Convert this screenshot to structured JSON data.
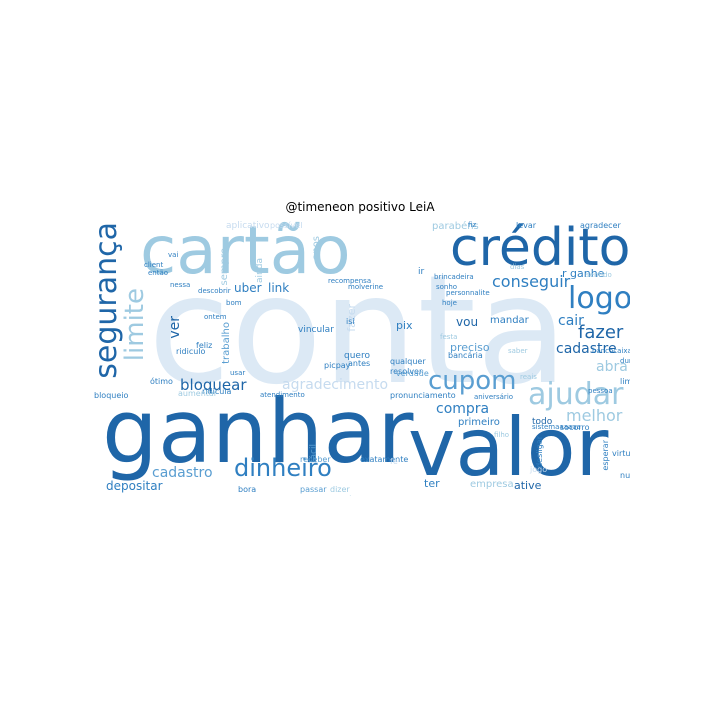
{
  "title": "@timeneon positivo LeiA",
  "colors": {
    "darkest": "#08306b",
    "dark": "#1f66a8",
    "mid": "#2f7fc1",
    "light": "#9ecae1",
    "lighter": "#c6dbef",
    "faint": "#deebf7"
  },
  "words": [
    {
      "text": "conta",
      "color": "#dce9f5"
    },
    {
      "text": "ganhar",
      "color": "#1f66a8"
    },
    {
      "text": "valor",
      "color": "#1f66a8"
    },
    {
      "text": "cartão",
      "color": "#9ecae1"
    },
    {
      "text": "crédito",
      "color": "#1f66a8"
    },
    {
      "text": "segurança",
      "color": "#1f66a8"
    },
    {
      "text": "logo",
      "color": "#2f7fc1"
    },
    {
      "text": "ajudar",
      "color": "#9ecae1"
    },
    {
      "text": "cupom",
      "color": "#5a9ed1"
    },
    {
      "text": "dinheiro",
      "color": "#2f7fc1"
    },
    {
      "text": "limite",
      "color": "#9ecae1"
    },
    {
      "text": "conseguir",
      "color": "#2f7fc1"
    },
    {
      "text": "fazer",
      "color": "#1f66a8"
    },
    {
      "text": "cadastre",
      "color": "#1f66a8"
    },
    {
      "text": "cair",
      "color": "#2f7fc1"
    },
    {
      "text": "abra",
      "color": "#9ecae1"
    },
    {
      "text": "melhor",
      "color": "#9ecae1"
    },
    {
      "text": "compra",
      "color": "#2f7fc1"
    },
    {
      "text": "bloquear",
      "color": "#1f66a8"
    },
    {
      "text": "agradecimento",
      "color": "#c6dbef"
    },
    {
      "text": "cadastro",
      "color": "#5a9ed1"
    },
    {
      "text": "depositar",
      "color": "#2f7fc1"
    },
    {
      "text": "ative",
      "color": "#1f66a8"
    },
    {
      "text": "uber",
      "color": "#2f7fc1"
    },
    {
      "text": "link",
      "color": "#2f7fc1"
    },
    {
      "text": "vou",
      "color": "#1f66a8"
    },
    {
      "text": "mandar",
      "color": "#2f7fc1"
    },
    {
      "text": "ver",
      "color": "#1f66a8"
    },
    {
      "text": "r ganhe",
      "color": "#2f7fc1"
    },
    {
      "text": "preciso",
      "color": "#5a9ed1"
    },
    {
      "text": "primeiro",
      "color": "#2f7fc1"
    },
    {
      "text": "todo",
      "color": "#1f66a8"
    },
    {
      "text": "ter",
      "color": "#2f7fc1"
    },
    {
      "text": "empresa",
      "color": "#9ecae1"
    },
    {
      "text": "pix",
      "color": "#2f7fc1"
    },
    {
      "text": "fazer",
      "color": "#c6dbef"
    },
    {
      "text": "parabéns",
      "color": "#9ecae1"
    },
    {
      "text": "trabalho",
      "color": "#5a9ed1"
    },
    {
      "text": "sempre",
      "color": "#9ecae1"
    },
    {
      "text": "ainda",
      "color": "#9ecae1"
    },
    {
      "text": "vincular",
      "color": "#2f7fc1"
    },
    {
      "text": "qualquer",
      "color": "#2f7fc1"
    },
    {
      "text": "resolver",
      "color": "#2f7fc1"
    },
    {
      "text": "quero",
      "color": "#2f7fc1"
    },
    {
      "text": "verdade",
      "color": "#5a9ed1"
    },
    {
      "text": "feliz",
      "color": "#2f7fc1"
    },
    {
      "text": "ridiculo",
      "color": "#2f7fc1"
    },
    {
      "text": "ótimo",
      "color": "#2f7fc1"
    },
    {
      "text": "bloqueio",
      "color": "#2f7fc1"
    },
    {
      "text": "ridicula",
      "color": "#2f7fc1"
    },
    {
      "text": "pronunciamento",
      "color": "#2f7fc1"
    },
    {
      "text": "aniversário",
      "color": "#2f7fc1"
    },
    {
      "text": "fácil",
      "color": "#5a9ed1"
    },
    {
      "text": "receber",
      "color": "#5a9ed1"
    },
    {
      "text": "exatamente",
      "color": "#2f7fc1"
    },
    {
      "text": "picpay",
      "color": "#2f7fc1"
    },
    {
      "text": "antes",
      "color": "#2f7fc1"
    },
    {
      "text": "bora",
      "color": "#2f7fc1"
    },
    {
      "text": "passar",
      "color": "#5a9ed1"
    },
    {
      "text": "dizer",
      "color": "#9ecae1"
    },
    {
      "text": "salário",
      "color": "#9ecae1"
    },
    {
      "text": "semana",
      "color": "#5a9ed1"
    },
    {
      "text": "agradecer",
      "color": "#2f7fc1"
    },
    {
      "text": "fiz",
      "color": "#2f7fc1"
    },
    {
      "text": "levar",
      "color": "#2f7fc1"
    },
    {
      "text": "sonho",
      "color": "#2f7fc1"
    },
    {
      "text": "personnalite",
      "color": "#2f7fc1"
    },
    {
      "text": "brincadeira",
      "color": "#2f7fc1"
    },
    {
      "text": "hoje",
      "color": "#2f7fc1"
    },
    {
      "text": "molverine",
      "color": "#2f7fc1"
    },
    {
      "text": "recompensa",
      "color": "#2f7fc1"
    },
    {
      "text": "ontem",
      "color": "#2f7fc1"
    },
    {
      "text": "bom",
      "color": "#2f7fc1"
    },
    {
      "text": "vai",
      "color": "#2f7fc1"
    },
    {
      "text": "client",
      "color": "#2f7fc1"
    },
    {
      "text": "então",
      "color": "#2f7fc1"
    },
    {
      "text": "descobrir",
      "color": "#2f7fc1"
    },
    {
      "text": "nessa",
      "color": "#2f7fc1"
    },
    {
      "text": "limpar",
      "color": "#2f7fc1"
    },
    {
      "text": "desligar",
      "color": "#2f7fc1"
    },
    {
      "text": "esperar",
      "color": "#2f7fc1"
    },
    {
      "text": "virtual",
      "color": "#2f7fc1"
    },
    {
      "text": "nunca",
      "color": "#2f7fc1"
    },
    {
      "text": "socorro",
      "color": "#2f7fc1"
    },
    {
      "text": "sistemaaaaaa",
      "color": "#2f7fc1"
    },
    {
      "text": "filho",
      "color": "#9ecae1"
    },
    {
      "text": "ir",
      "color": "#2f7fc1"
    },
    {
      "text": "isi",
      "color": "#2f7fc1"
    },
    {
      "text": "usar",
      "color": "#2f7fc1"
    },
    {
      "text": "saber",
      "color": "#9ecae1"
    },
    {
      "text": "reais",
      "color": "#9ecae1"
    },
    {
      "text": "dias",
      "color": "#9ecae1"
    },
    {
      "text": "sentido",
      "color": "#9ecae1"
    },
    {
      "text": "festa",
      "color": "#9ecae1"
    },
    {
      "text": "bancária",
      "color": "#2f7fc1"
    },
    {
      "text": "atendimento",
      "color": "#2f7fc1"
    },
    {
      "text": "aumentar",
      "color": "#9ecae1"
    },
    {
      "text": "anos",
      "color": "#9ecae1"
    },
    {
      "text": "durar",
      "color": "#2f7fc1"
    },
    {
      "text": "bancocaixa",
      "color": "#2f7fc1"
    },
    {
      "text": "pessoa",
      "color": "#2f7fc1"
    },
    {
      "text": "aplicativo",
      "color": "#c6dbef"
    },
    {
      "text": "possível",
      "color": "#c6dbef"
    },
    {
      "text": "jogo",
      "color": "#c6dbef"
    },
    {
      "text": "fé",
      "color": "#c6dbef"
    }
  ]
}
